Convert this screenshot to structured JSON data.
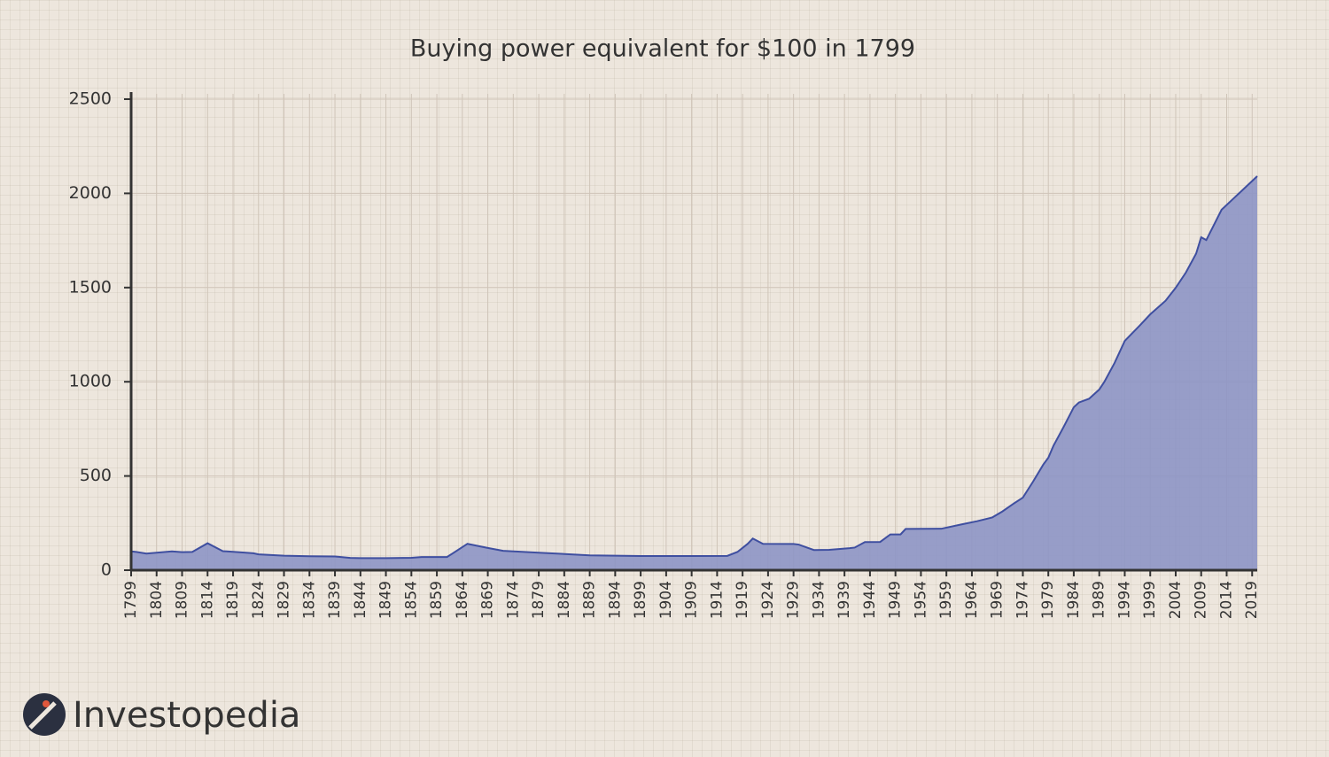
{
  "chart_data": {
    "type": "area",
    "title": "Buying power equivalent for $100 in 1799",
    "brand": "Investopedia",
    "color": "#8d95c5",
    "line_color": "#3f4fa0",
    "grid": true,
    "x": [
      1799,
      1800,
      1802,
      1804,
      1807,
      1809,
      1811,
      1814,
      1817,
      1820,
      1823,
      1824,
      1829,
      1834,
      1839,
      1842,
      1844,
      1849,
      1854,
      1856,
      1861,
      1865,
      1869,
      1872,
      1879,
      1889,
      1899,
      1909,
      1916,
      1918,
      1920,
      1921,
      1923,
      1929,
      1930,
      1933,
      1936,
      1940,
      1941,
      1943,
      1946,
      1948,
      1950,
      1951,
      1958,
      1962,
      1965,
      1968,
      1970,
      1972,
      1974,
      1976,
      1978,
      1979,
      1980,
      1982,
      1984,
      1985,
      1987,
      1989,
      1990,
      1992,
      1994,
      1997,
      1999,
      2002,
      2004,
      2006,
      2008,
      2009,
      2010,
      2013,
      2015,
      2020
    ],
    "values": [
      100,
      97,
      88,
      93,
      100,
      96,
      97,
      143,
      101,
      96,
      90,
      84,
      77,
      74,
      73,
      65,
      64,
      64,
      66,
      70,
      70,
      140,
      118,
      103,
      93,
      79,
      75,
      75,
      76,
      97,
      140,
      168,
      140,
      139,
      136,
      107,
      108,
      117,
      120,
      149,
      150,
      190,
      190,
      219,
      220,
      243,
      260,
      280,
      312,
      350,
      385,
      470,
      560,
      597,
      660,
      760,
      865,
      890,
      910,
      959,
      1000,
      1100,
      1217,
      1300,
      1358,
      1430,
      1499,
      1580,
      1680,
      1767,
      1752,
      1913,
      1964,
      2091
    ],
    "xlim": [
      1799,
      2020
    ],
    "xticks": [
      1799,
      1804,
      1809,
      1814,
      1819,
      1824,
      1829,
      1834,
      1839,
      1844,
      1849,
      1854,
      1859,
      1864,
      1869,
      1874,
      1879,
      1884,
      1889,
      1894,
      1899,
      1904,
      1909,
      1914,
      1919,
      1924,
      1929,
      1934,
      1939,
      1944,
      1949,
      1954,
      1959,
      1964,
      1969,
      1974,
      1979,
      1984,
      1989,
      1994,
      1999,
      2004,
      2009,
      2014,
      2019
    ],
    "ylim": [
      0,
      2500
    ],
    "yticks": [
      0,
      500,
      1000,
      1500,
      2000,
      2500
    ]
  }
}
